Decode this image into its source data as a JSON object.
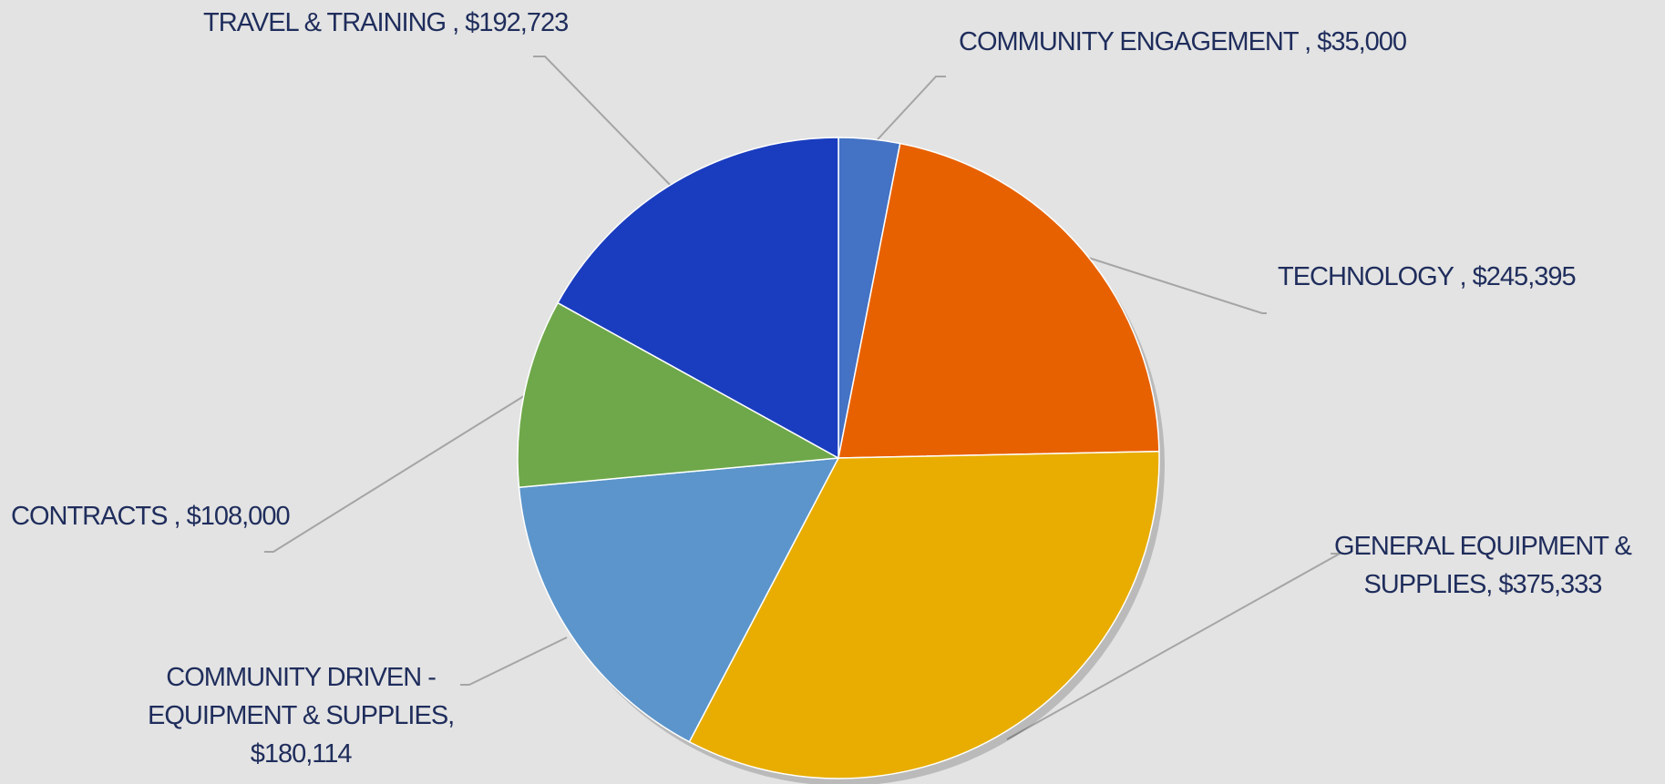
{
  "chart_data": {
    "type": "pie",
    "title": "",
    "slices": [
      {
        "label": "COMMUNITY ENGAGEMENT",
        "value": 35000,
        "value_label": "$35,000",
        "color": "#4472c4"
      },
      {
        "label": "TECHNOLOGY",
        "value": 245395,
        "value_label": "$245,395",
        "color": "#e86100"
      },
      {
        "label": "GENERAL EQUIPMENT & SUPPLIES",
        "value": 375333,
        "value_label": "$375,333",
        "color": "#e8ad00"
      },
      {
        "label": "COMMUNITY DRIVEN - EQUIPMENT & SUPPLIES",
        "value": 180114,
        "value_label": "$180,114",
        "color": "#5b95cb"
      },
      {
        "label": "CONTRACTS",
        "value": 108000,
        "value_label": "$108,000",
        "color": "#6fa84a"
      },
      {
        "label": "TRAVEL & TRAINING",
        "value": 192723,
        "value_label": "$192,723",
        "color": "#1a3dbf"
      }
    ],
    "label_lines": {
      "engagement": [
        "COMMUNITY ENGAGEMENT , $35,000"
      ],
      "technology": [
        "TECHNOLOGY , $245,395"
      ],
      "general": [
        "GENERAL EQUIPMENT &",
        "SUPPLIES, $375,333"
      ],
      "driven": [
        "COMMUNITY DRIVEN -",
        "EQUIPMENT & SUPPLIES,",
        "$180,114"
      ],
      "contracts": [
        "CONTRACTS , $108,000"
      ],
      "travel": [
        "TRAVEL & TRAINING , $192,723"
      ]
    },
    "start_angle": "12 o'clock",
    "direction": "clockwise",
    "legend": "none"
  }
}
